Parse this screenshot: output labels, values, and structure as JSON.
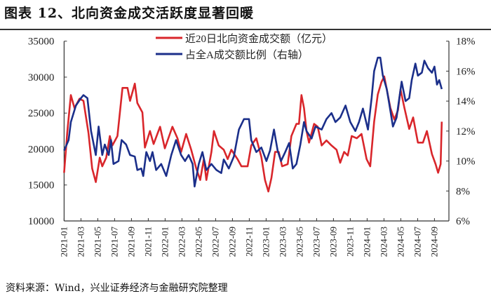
{
  "title": "图表 12、北向资金成交活跃度显著回暖",
  "source": "资料来源：Wind，兴业证券经济与金融研究院整理",
  "chart_data": {
    "type": "line",
    "title": "图表 12、北向资金成交活跃度显著回暖",
    "y_left": {
      "ylim": [
        10000,
        35000
      ],
      "ticks": [
        "10000",
        "15000",
        "20000",
        "25000",
        "30000",
        "35000"
      ]
    },
    "y_right": {
      "ylim": [
        6,
        18
      ],
      "ticks": [
        "6%",
        "8%",
        "10%",
        "12%",
        "14%",
        "16%",
        "18%"
      ]
    },
    "x_ticks": [
      "2021-01",
      "2021-03",
      "2021-05",
      "2021-07",
      "2021-09",
      "2021-11",
      "2022-01",
      "2022-03",
      "2022-05",
      "2022-07",
      "2022-09",
      "2022-11",
      "2023-01",
      "2023-03",
      "2023-05",
      "2023-07",
      "2023-09",
      "2023-11",
      "2024-01",
      "2024-03",
      "2024-05",
      "2024-07",
      "2024-09"
    ],
    "grid": false,
    "legend_position": "top-center",
    "series": [
      {
        "name": "近20日北向资金成交额（亿元）",
        "axis": "left",
        "color": "#d9262b",
        "x": [
          "2021-01-01",
          "2021-01-12",
          "2021-01-25",
          "2021-02-08",
          "2021-02-26",
          "2021-03-10",
          "2021-03-28",
          "2021-04-11",
          "2021-04-24",
          "2021-05-08",
          "2021-05-17",
          "2021-06-01",
          "2021-06-14",
          "2021-06-23",
          "2021-07-11",
          "2021-07-29",
          "2021-08-17",
          "2021-08-26",
          "2021-09-13",
          "2021-09-22",
          "2021-10-10",
          "2021-10-19",
          "2021-11-07",
          "2021-11-20",
          "2021-12-13",
          "2021-12-30",
          "2022-01-27",
          "2022-02-15",
          "2022-02-28",
          "2022-03-16",
          "2022-04-04",
          "2022-04-22",
          "2022-05-06",
          "2022-05-19",
          "2022-05-28",
          "2022-06-16",
          "2022-06-25",
          "2022-07-12",
          "2022-07-30",
          "2022-08-14",
          "2022-08-27",
          "2022-09-19",
          "2022-10-03",
          "2022-10-25",
          "2022-11-08",
          "2022-11-26",
          "2022-12-14",
          "2022-12-27",
          "2023-01-09",
          "2023-01-20",
          "2023-02-03",
          "2023-02-16",
          "2023-02-28",
          "2023-03-18",
          "2023-04-01",
          "2023-04-19",
          "2023-04-28",
          "2023-05-07",
          "2023-05-16",
          "2023-05-25",
          "2023-06-04",
          "2023-06-22",
          "2023-07-05",
          "2023-07-19",
          "2023-08-06",
          "2023-08-24",
          "2023-09-12",
          "2023-09-25",
          "2023-10-09",
          "2023-10-22",
          "2023-11-06",
          "2023-11-24",
          "2023-12-11",
          "2023-12-29",
          "2024-01-12",
          "2024-01-26",
          "2024-02-09",
          "2024-02-22",
          "2024-03-02",
          "2024-03-11",
          "2024-03-24",
          "2024-04-08",
          "2024-04-21",
          "2024-04-30",
          "2024-05-14",
          "2024-06-01",
          "2024-06-15",
          "2024-07-02",
          "2024-07-20",
          "2024-08-04",
          "2024-08-22",
          "2024-09-05",
          "2024-09-14",
          "2024-09-23",
          "2024-09-27"
        ],
        "values": [
          16700,
          22200,
          27500,
          25700,
          27000,
          26700,
          22200,
          17300,
          15400,
          18800,
          17600,
          18800,
          21800,
          20500,
          21800,
          28500,
          28500,
          26700,
          29100,
          26400,
          25100,
          20200,
          22500,
          20700,
          23100,
          20100,
          23100,
          21500,
          19600,
          22100,
          19900,
          17300,
          15700,
          18600,
          15700,
          19600,
          22500,
          20500,
          19900,
          18600,
          19900,
          18600,
          17600,
          17600,
          20500,
          21500,
          18900,
          15700,
          14100,
          16000,
          19600,
          19600,
          17600,
          17900,
          21800,
          23500,
          23500,
          27500,
          25700,
          22500,
          20900,
          23500,
          23100,
          20500,
          21200,
          20500,
          19900,
          18100,
          19600,
          19100,
          21800,
          21500,
          22100,
          18600,
          17600,
          23800,
          27600,
          29300,
          30100,
          28300,
          25700,
          24100,
          25400,
          28300,
          25700,
          22800,
          24400,
          20900,
          20900,
          22500,
          19300,
          17900,
          16700,
          17900,
          23800
        ]
      },
      {
        "name": "占全A成交额比例（右轴）",
        "axis": "right",
        "color": "#1b2f8a",
        "x": [
          "2021-01-01",
          "2021-01-17",
          "2021-01-25",
          "2021-02-13",
          "2021-03-01",
          "2021-03-10",
          "2021-03-24",
          "2021-04-07",
          "2021-04-24",
          "2021-05-04",
          "2021-05-17",
          "2021-05-26",
          "2021-06-10",
          "2021-06-18",
          "2021-06-27",
          "2021-07-15",
          "2021-07-26",
          "2021-08-12",
          "2021-08-26",
          "2021-09-13",
          "2021-09-22",
          "2021-10-06",
          "2021-10-13",
          "2021-10-24",
          "2021-11-07",
          "2021-11-16",
          "2021-11-29",
          "2021-12-17",
          "2022-01-05",
          "2022-01-23",
          "2022-02-10",
          "2022-02-28",
          "2022-03-12",
          "2022-03-25",
          "2022-04-09",
          "2022-04-16",
          "2022-05-01",
          "2022-05-14",
          "2022-05-28",
          "2022-06-16",
          "2022-07-04",
          "2022-07-21",
          "2022-07-30",
          "2022-08-18",
          "2022-09-06",
          "2022-09-24",
          "2022-10-12",
          "2022-10-30",
          "2022-11-08",
          "2022-11-26",
          "2022-12-14",
          "2023-01-02",
          "2023-01-15",
          "2023-01-29",
          "2023-02-12",
          "2023-02-24",
          "2023-03-09",
          "2023-03-23",
          "2023-04-06",
          "2023-04-19",
          "2023-05-03",
          "2023-05-16",
          "2023-05-25",
          "2023-06-13",
          "2023-06-27",
          "2023-07-19",
          "2023-08-06",
          "2023-08-24",
          "2023-09-08",
          "2023-09-25",
          "2023-10-14",
          "2023-11-01",
          "2023-11-19",
          "2023-12-02",
          "2023-12-16",
          "2024-01-04",
          "2024-01-17",
          "2024-01-26",
          "2024-02-09",
          "2024-02-18",
          "2024-02-27",
          "2024-03-11",
          "2024-03-20",
          "2024-04-03",
          "2024-04-16",
          "2024-05-04",
          "2024-05-18",
          "2024-06-01",
          "2024-06-10",
          "2024-06-23",
          "2024-07-02",
          "2024-07-16",
          "2024-07-25",
          "2024-08-08",
          "2024-08-22",
          "2024-08-31",
          "2024-09-10",
          "2024-09-18",
          "2024-09-27"
        ],
        "values": [
          10.7,
          11.4,
          12.6,
          13.7,
          14.2,
          14.4,
          14.2,
          12.0,
          10.4,
          12.3,
          10.4,
          11.1,
          10.4,
          11.4,
          9.8,
          10.0,
          11.4,
          11.1,
          10.4,
          10.3,
          9.4,
          9.5,
          9.0,
          10.6,
          10.0,
          10.6,
          9.4,
          9.8,
          9.0,
          10.4,
          11.4,
          10.4,
          10.0,
          10.4,
          9.8,
          8.3,
          9.8,
          10.6,
          9.4,
          9.8,
          9.4,
          9.2,
          10.1,
          9.5,
          10.3,
          12.1,
          12.8,
          12.8,
          11.4,
          10.6,
          10.9,
          10.0,
          10.7,
          12.1,
          10.7,
          10.0,
          10.6,
          11.2,
          9.5,
          9.8,
          11.1,
          12.6,
          12.0,
          11.5,
          12.3,
          12.1,
          12.8,
          13.2,
          12.6,
          12.9,
          13.7,
          12.6,
          12.0,
          12.6,
          13.5,
          12.1,
          14.2,
          16.0,
          16.9,
          16.9,
          15.7,
          14.8,
          13.8,
          12.3,
          12.9,
          15.3,
          14.0,
          14.2,
          15.4,
          16.5,
          15.7,
          15.9,
          16.7,
          16.2,
          15.9,
          16.3,
          15.1,
          15.4,
          14.8
        ]
      }
    ]
  }
}
